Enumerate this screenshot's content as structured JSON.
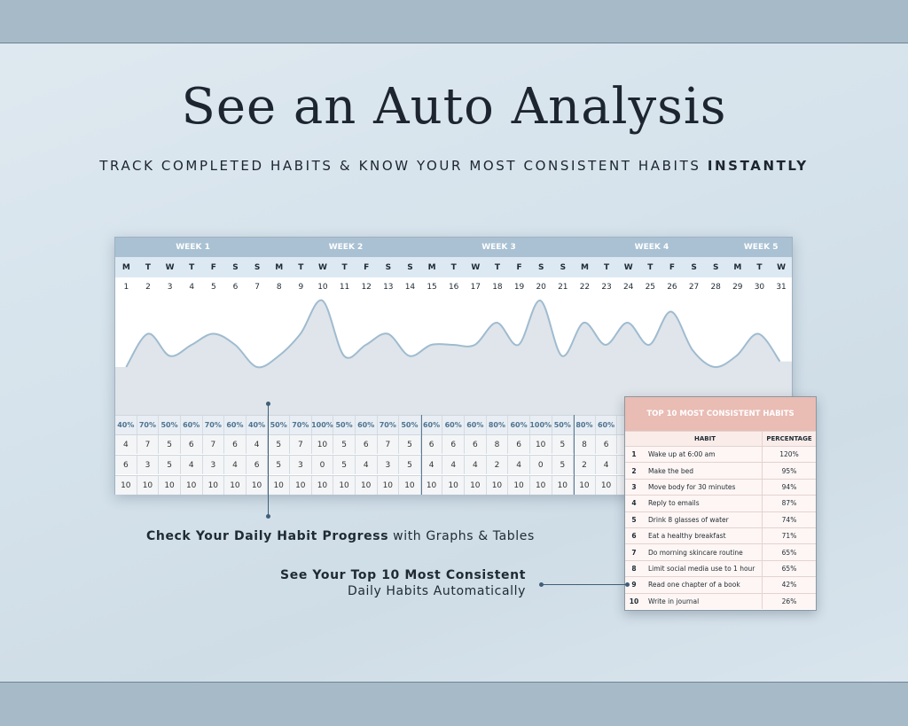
{
  "header": {
    "title": "See an Auto Analysis",
    "subtitle_main": "TRACK COMPLETED HABITS & KNOW YOUR MOST CONSISTENT HABITS ",
    "subtitle_bold": "INSTANTLY"
  },
  "tracker": {
    "weeks": [
      "WEEK 1",
      "WEEK 2",
      "WEEK 3",
      "WEEK 4",
      "WEEK 5"
    ],
    "day_letters": [
      "M",
      "T",
      "W",
      "T",
      "F",
      "S",
      "S",
      "M",
      "T",
      "W",
      "T",
      "F",
      "S",
      "S",
      "M",
      "T",
      "W",
      "T",
      "F",
      "S",
      "S",
      "M",
      "T",
      "W",
      "T",
      "F",
      "S",
      "S",
      "M",
      "T",
      "W"
    ],
    "day_numbers": [
      "1",
      "2",
      "3",
      "4",
      "5",
      "6",
      "7",
      "8",
      "9",
      "10",
      "11",
      "12",
      "13",
      "14",
      "15",
      "16",
      "17",
      "18",
      "19",
      "20",
      "21",
      "22",
      "23",
      "24",
      "25",
      "26",
      "27",
      "28",
      "29",
      "30",
      "31"
    ],
    "percentages": [
      "40%",
      "70%",
      "50%",
      "60%",
      "70%",
      "60%",
      "40%",
      "50%",
      "70%",
      "100%",
      "50%",
      "60%",
      "70%",
      "50%",
      "60%",
      "60%",
      "60%",
      "80%",
      "60%",
      "100%",
      "50%",
      "80%",
      "60%"
    ],
    "completed": [
      "4",
      "7",
      "5",
      "6",
      "7",
      "6",
      "4",
      "5",
      "7",
      "10",
      "5",
      "6",
      "7",
      "5",
      "6",
      "6",
      "6",
      "8",
      "6",
      "10",
      "5",
      "8",
      "6"
    ],
    "missed": [
      "6",
      "3",
      "5",
      "4",
      "3",
      "4",
      "6",
      "5",
      "3",
      "0",
      "5",
      "4",
      "3",
      "5",
      "4",
      "4",
      "4",
      "2",
      "4",
      "0",
      "5",
      "2",
      "4"
    ],
    "total": [
      "10",
      "10",
      "10",
      "10",
      "10",
      "10",
      "10",
      "10",
      "10",
      "10",
      "10",
      "10",
      "10",
      "10",
      "10",
      "10",
      "10",
      "10",
      "10",
      "10",
      "10",
      "10",
      "10"
    ],
    "trend_percent": [
      40,
      70,
      50,
      60,
      70,
      60,
      40,
      50,
      70,
      100,
      50,
      60,
      70,
      50,
      60,
      60,
      60,
      80,
      60,
      100,
      50,
      80,
      60,
      80,
      60,
      90,
      55,
      40,
      50,
      70,
      45
    ],
    "colors": {
      "line": "#9fbbd0",
      "fill": "#dfe5ea",
      "week_header": "#a9c1d3"
    }
  },
  "top10": {
    "title": "TOP 10 MOST CONSISTENT HABITS",
    "col_habit": "HABIT",
    "col_pct": "PERCENTAGE",
    "rows": [
      {
        "n": "1",
        "habit": "Wake up at 6:00 am",
        "pct": "120%"
      },
      {
        "n": "2",
        "habit": "Make the bed",
        "pct": "95%"
      },
      {
        "n": "3",
        "habit": "Move body for 30 minutes",
        "pct": "94%"
      },
      {
        "n": "4",
        "habit": "Reply to emails",
        "pct": "87%"
      },
      {
        "n": "5",
        "habit": "Drink 8 glasses of water",
        "pct": "74%"
      },
      {
        "n": "6",
        "habit": "Eat a healthy breakfast",
        "pct": "71%"
      },
      {
        "n": "7",
        "habit": "Do morning skincare routine",
        "pct": "65%"
      },
      {
        "n": "8",
        "habit": "Limit social media use to 1 hour",
        "pct": "65%"
      },
      {
        "n": "9",
        "habit": "Read one chapter of a book",
        "pct": "42%"
      },
      {
        "n": "10",
        "habit": "Write in journal",
        "pct": "26%"
      }
    ],
    "header_color": "#e9bcb4"
  },
  "captions": {
    "c1_bold": "Check Your Daily Habit Progress",
    "c1_rest": " with Graphs & Tables",
    "c2_line1": "See Your Top 10 Most Consistent",
    "c2_line2": "Daily Habits Automatically"
  }
}
